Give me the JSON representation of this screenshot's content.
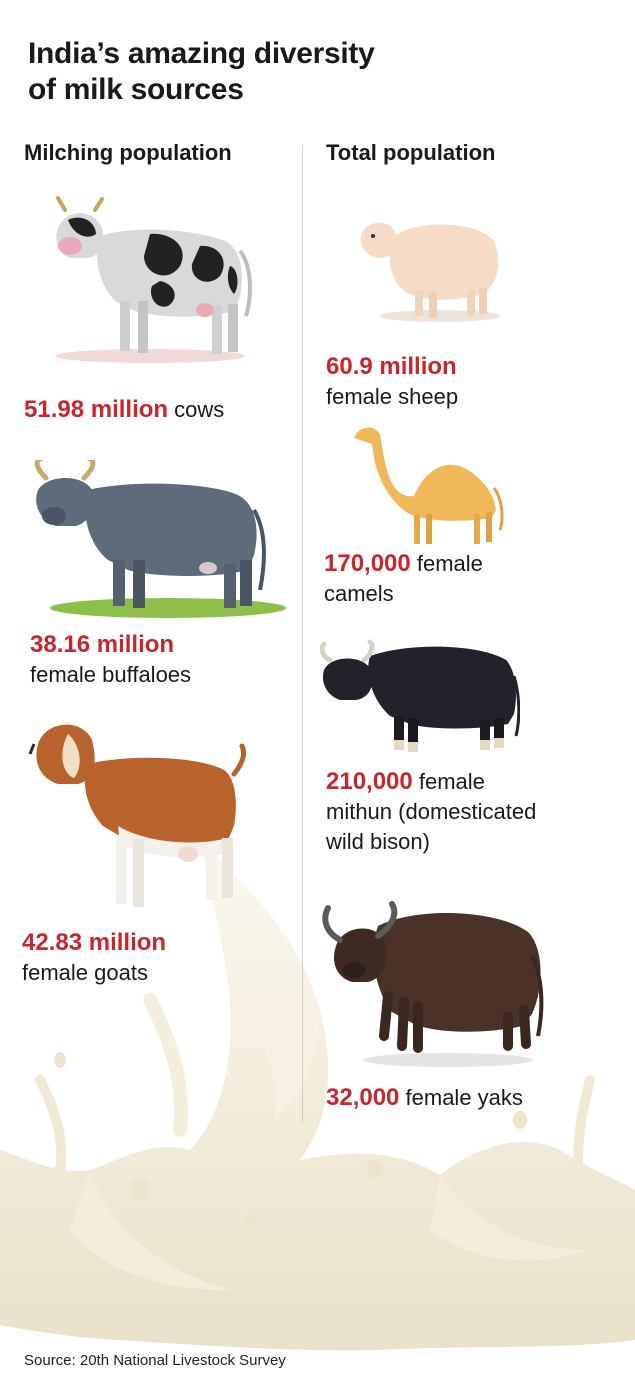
{
  "title_line1": "India’s amazing diversity",
  "title_line2": "of milk sources",
  "columns": {
    "left_header": "Milching population",
    "right_header": "Total population"
  },
  "left": [
    {
      "animal": "cow",
      "icon": "cow-icon",
      "value": "51.98 million",
      "label_line1": " cows",
      "label_line2": ""
    },
    {
      "animal": "buffalo",
      "icon": "buffalo-icon",
      "value": "38.16 million",
      "label_line1": "",
      "label_line2": "female buffaloes"
    },
    {
      "animal": "goat",
      "icon": "goat-icon",
      "value": "42.83 million",
      "label_line1": "",
      "label_line2": "female goats"
    }
  ],
  "right": [
    {
      "animal": "sheep",
      "icon": "sheep-icon",
      "value": "60.9 million",
      "label_line1": "",
      "label_line2": "female sheep",
      "label_line3": ""
    },
    {
      "animal": "camel",
      "icon": "camel-icon",
      "value": "170,000",
      "label_line1": " female",
      "label_line2": "camels",
      "label_line3": ""
    },
    {
      "animal": "mithun",
      "icon": "mithun-icon",
      "value": "210,000",
      "label_line1": " female",
      "label_line2": "mithun (domesticated",
      "label_line3": "wild bison)"
    },
    {
      "animal": "yak",
      "icon": "yak-icon",
      "value": "32,000",
      "label_line1": " female yaks",
      "label_line2": "",
      "label_line3": ""
    }
  ],
  "source": "Source: 20th National Livestock Survey",
  "colors": {
    "accent": "#c8262e",
    "milk": "#efe8d4",
    "text": "#1a1a1a"
  }
}
